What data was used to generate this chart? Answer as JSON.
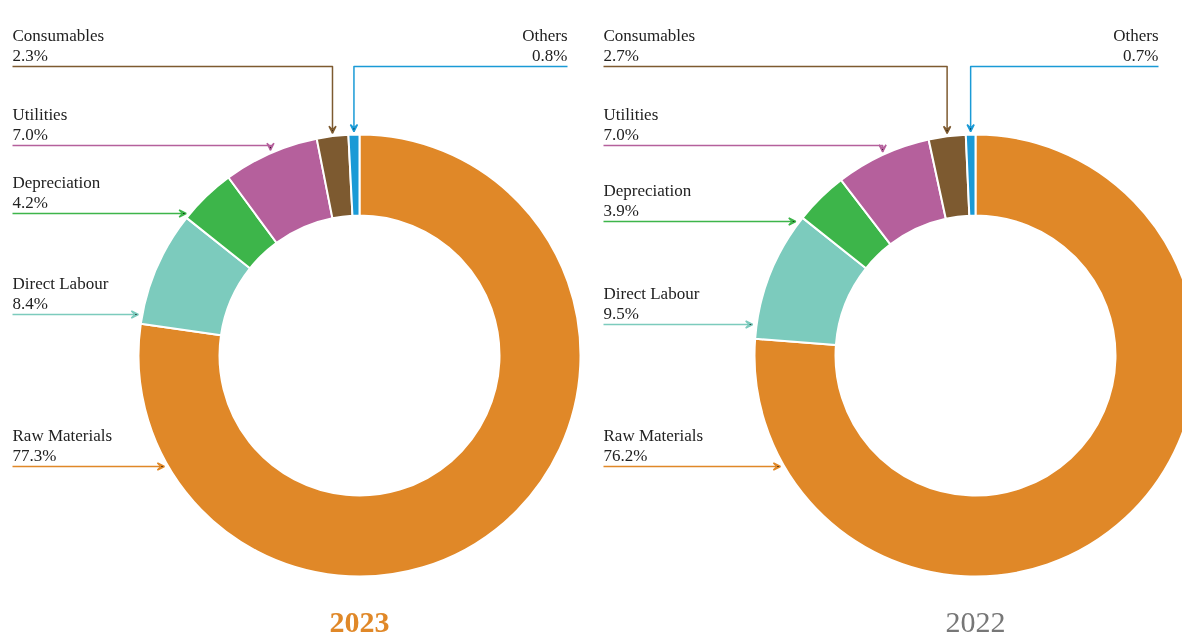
{
  "chart_data": [
    {
      "type": "donut",
      "title": "2023",
      "categories": [
        "Raw Materials",
        "Direct Labour",
        "Depreciation",
        "Utilities",
        "Consumables",
        "Others"
      ],
      "values": [
        77.3,
        8.4,
        4.2,
        7.0,
        2.3,
        0.8
      ],
      "value_labels": [
        "77.3%",
        "8.4%",
        "4.2%",
        "7.0%",
        "2.3%",
        "0.8%"
      ],
      "colors": [
        "#e08828",
        "#7ccbbd",
        "#3db54a",
        "#b5609c",
        "#7d5a30",
        "#1a9ad6"
      ],
      "legend": false
    },
    {
      "type": "donut",
      "title": "2022",
      "categories": [
        "Raw Materials",
        "Direct Labour",
        "Depreciation",
        "Utilities",
        "Consumables",
        "Others"
      ],
      "values": [
        76.2,
        9.5,
        3.9,
        7.0,
        2.7,
        0.7
      ],
      "value_labels": [
        "76.2%",
        "9.5%",
        "3.9%",
        "7.0%",
        "2.7%",
        "0.7%"
      ],
      "colors": [
        "#e08828",
        "#7ccbbd",
        "#3db54a",
        "#b5609c",
        "#7d5a30",
        "#1a9ad6"
      ],
      "legend": false
    }
  ]
}
